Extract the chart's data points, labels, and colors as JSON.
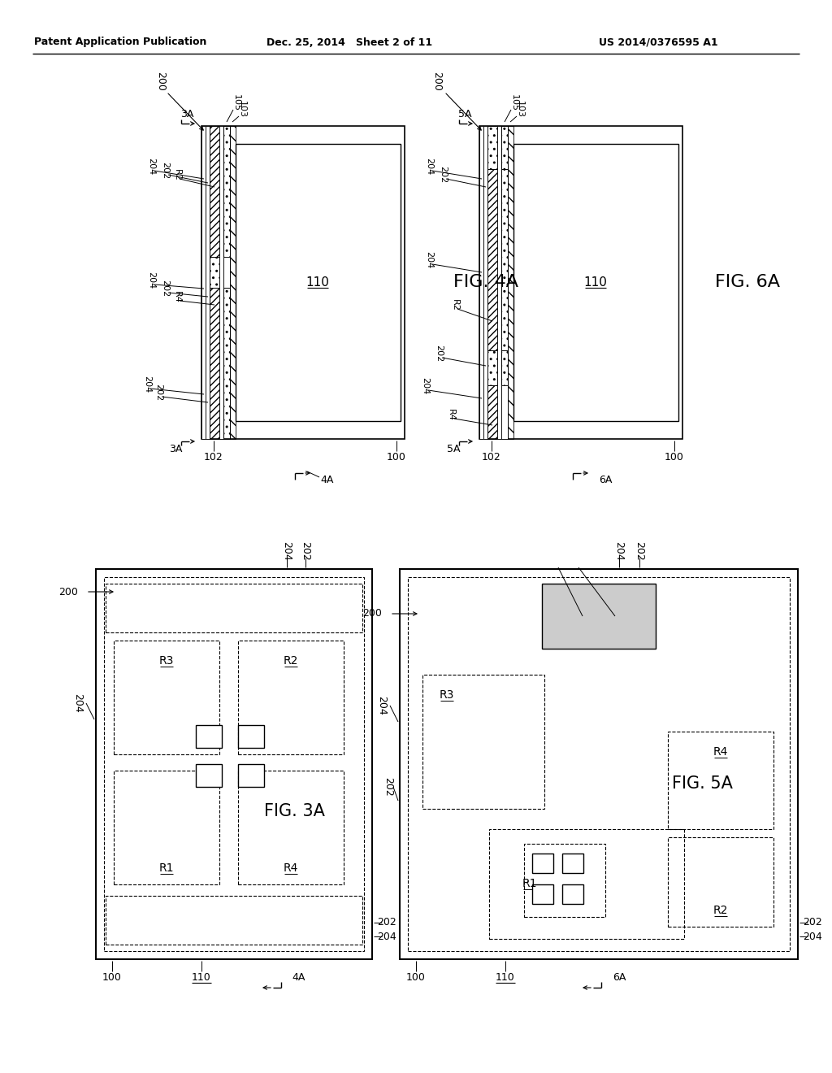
{
  "header_left": "Patent Application Publication",
  "header_mid": "Dec. 25, 2014   Sheet 2 of 11",
  "header_right": "US 2014/0376595 A1",
  "fig4a_label": "FIG. 4A",
  "fig6a_label": "FIG. 6A",
  "fig3a_label": "FIG. 3A",
  "fig5a_label": "FIG. 5A",
  "bg_color": "#ffffff"
}
